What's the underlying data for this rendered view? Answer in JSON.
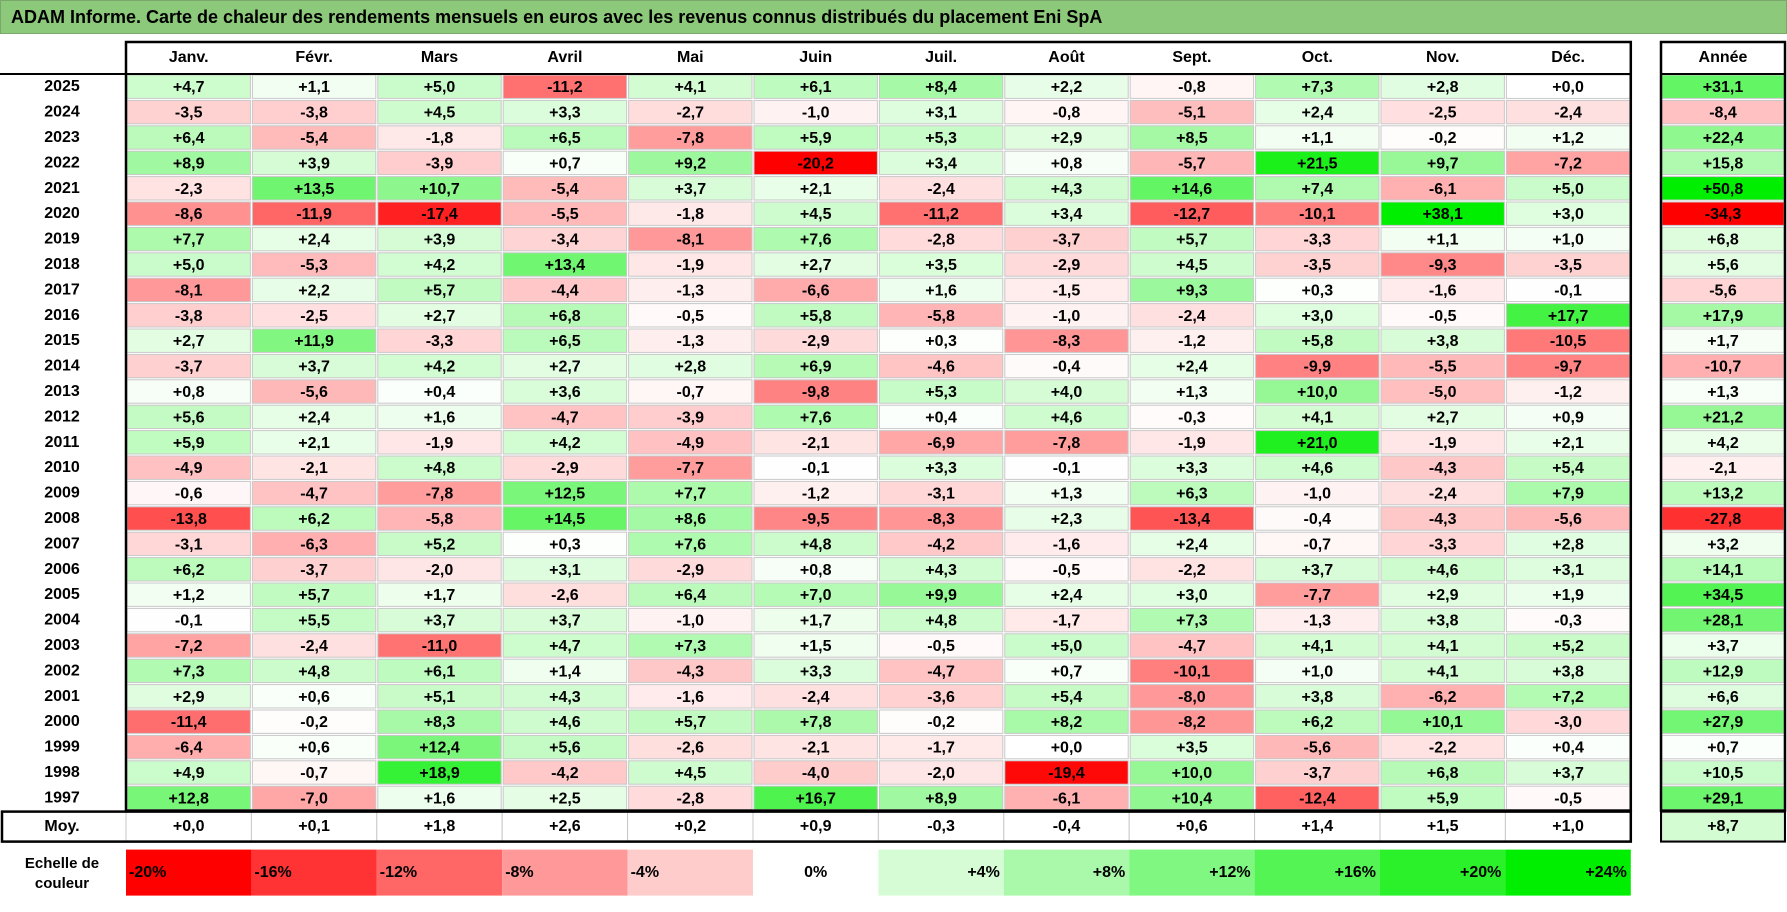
{
  "title": "ADAM Informe. Carte de chaleur des rendements mensuels en euros avec les revenus connus distribués du placement Eni SpA",
  "colors": {
    "title_bg": "#8cc97a",
    "negative_max": "#ff0000",
    "positive_max": "#00ee00",
    "neutral": "#ffffff",
    "grid": "#c8c8c8",
    "border": "#000000"
  },
  "chart_data": {
    "type": "heatmap",
    "title": "ADAM Informe. Carte de chaleur des rendements mensuels en euros avec les revenus connus distribués du placement Eni SpA",
    "columns": [
      "Janv.",
      "Févr.",
      "Mars",
      "Avril",
      "Mai",
      "Juin",
      "Juil.",
      "Août",
      "Sept.",
      "Oct.",
      "Nov.",
      "Déc."
    ],
    "year_column_label": "Année",
    "rows": [
      {
        "year": "2025",
        "values": [
          4.7,
          1.1,
          5.0,
          -11.2,
          4.1,
          6.1,
          8.4,
          2.2,
          -0.8,
          7.3,
          2.8,
          0.0
        ],
        "annual": 31.1
      },
      {
        "year": "2024",
        "values": [
          -3.5,
          -3.8,
          4.5,
          3.3,
          -2.7,
          -1.0,
          3.1,
          -0.8,
          -5.1,
          2.4,
          -2.5,
          -2.4
        ],
        "annual": -8.4
      },
      {
        "year": "2023",
        "values": [
          6.4,
          -5.4,
          -1.8,
          6.5,
          -7.8,
          5.9,
          5.3,
          2.9,
          8.5,
          1.1,
          -0.2,
          1.2
        ],
        "annual": 22.4
      },
      {
        "year": "2022",
        "values": [
          8.9,
          3.9,
          -3.9,
          0.7,
          9.2,
          -20.2,
          3.4,
          0.8,
          -5.7,
          21.5,
          9.7,
          -7.2
        ],
        "annual": 15.8
      },
      {
        "year": "2021",
        "values": [
          -2.3,
          13.5,
          10.7,
          -5.4,
          3.7,
          2.1,
          -2.4,
          4.3,
          14.6,
          7.4,
          -6.1,
          5.0
        ],
        "annual": 50.8
      },
      {
        "year": "2020",
        "values": [
          -8.6,
          -11.9,
          -17.4,
          -5.5,
          -1.8,
          4.5,
          -11.2,
          3.4,
          -12.7,
          -10.1,
          38.1,
          3.0
        ],
        "annual": -34.3
      },
      {
        "year": "2019",
        "values": [
          7.7,
          2.4,
          3.9,
          -3.4,
          -8.1,
          7.6,
          -2.8,
          -3.7,
          5.7,
          -3.3,
          1.1,
          1.0
        ],
        "annual": 6.8
      },
      {
        "year": "2018",
        "values": [
          5.0,
          -5.3,
          4.2,
          13.4,
          -1.9,
          2.7,
          3.5,
          -2.9,
          4.5,
          -3.5,
          -9.3,
          -3.5
        ],
        "annual": 5.6
      },
      {
        "year": "2017",
        "values": [
          -8.1,
          2.2,
          5.7,
          -4.4,
          -1.3,
          -6.6,
          1.6,
          -1.5,
          9.3,
          0.3,
          -1.6,
          -0.1
        ],
        "annual": -5.6
      },
      {
        "year": "2016",
        "values": [
          -3.8,
          -2.5,
          2.7,
          6.8,
          -0.5,
          5.8,
          -5.8,
          -1.0,
          -2.4,
          3.0,
          -0.5,
          17.7
        ],
        "annual": 17.9
      },
      {
        "year": "2015",
        "values": [
          2.7,
          11.9,
          -3.3,
          6.5,
          -1.3,
          -2.9,
          0.3,
          -8.3,
          -1.2,
          5.8,
          3.8,
          -10.5
        ],
        "annual": 1.7
      },
      {
        "year": "2014",
        "values": [
          -3.7,
          3.7,
          4.2,
          2.7,
          2.8,
          6.9,
          -4.6,
          -0.4,
          2.4,
          -9.9,
          -5.5,
          -9.7
        ],
        "annual": -10.7
      },
      {
        "year": "2013",
        "values": [
          0.8,
          -5.6,
          0.4,
          3.6,
          -0.7,
          -9.8,
          5.3,
          4.0,
          1.3,
          10.0,
          -5.0,
          -1.2
        ],
        "annual": 1.3
      },
      {
        "year": "2012",
        "values": [
          5.6,
          2.4,
          1.6,
          -4.7,
          -3.9,
          7.6,
          0.4,
          4.6,
          -0.3,
          4.1,
          2.7,
          0.9
        ],
        "annual": 21.2
      },
      {
        "year": "2011",
        "values": [
          5.9,
          2.1,
          -1.9,
          4.2,
          -4.9,
          -2.1,
          -6.9,
          -7.8,
          -1.9,
          21.0,
          -1.9,
          2.1
        ],
        "annual": 4.2
      },
      {
        "year": "2010",
        "values": [
          -4.9,
          -2.1,
          4.8,
          -2.9,
          -7.7,
          -0.1,
          3.3,
          -0.1,
          3.3,
          4.6,
          -4.3,
          5.4
        ],
        "annual": -2.1
      },
      {
        "year": "2009",
        "values": [
          -0.6,
          -4.7,
          -7.8,
          12.5,
          7.7,
          -1.2,
          -3.1,
          1.3,
          6.3,
          -1.0,
          -2.4,
          7.9
        ],
        "annual": 13.2
      },
      {
        "year": "2008",
        "values": [
          -13.8,
          6.2,
          -5.8,
          14.5,
          8.6,
          -9.5,
          -8.3,
          2.3,
          -13.4,
          -0.4,
          -4.3,
          -5.6
        ],
        "annual": -27.8
      },
      {
        "year": "2007",
        "values": [
          -3.1,
          -6.3,
          5.2,
          0.3,
          7.6,
          4.8,
          -4.2,
          -1.6,
          2.4,
          -0.7,
          -3.3,
          2.8
        ],
        "annual": 3.2
      },
      {
        "year": "2006",
        "values": [
          6.2,
          -3.7,
          -2.0,
          3.1,
          -2.9,
          0.8,
          4.3,
          -0.5,
          -2.2,
          3.7,
          4.6,
          3.1
        ],
        "annual": 14.1
      },
      {
        "year": "2005",
        "values": [
          1.2,
          5.7,
          1.7,
          -2.6,
          6.4,
          7.0,
          9.9,
          2.4,
          3.0,
          -7.7,
          2.9,
          1.9
        ],
        "annual": 34.5
      },
      {
        "year": "2004",
        "values": [
          -0.1,
          5.5,
          3.7,
          3.7,
          -1.0,
          1.7,
          4.8,
          -1.7,
          7.3,
          -1.3,
          3.8,
          -0.3
        ],
        "annual": 28.1
      },
      {
        "year": "2003",
        "values": [
          -7.2,
          -2.4,
          -11.0,
          4.7,
          7.3,
          1.5,
          -0.5,
          5.0,
          -4.7,
          4.1,
          4.1,
          5.2
        ],
        "annual": 3.7
      },
      {
        "year": "2002",
        "values": [
          7.3,
          4.8,
          6.1,
          1.4,
          -4.3,
          3.3,
          -4.7,
          0.7,
          -10.1,
          1.0,
          4.1,
          3.8
        ],
        "annual": 12.9
      },
      {
        "year": "2001",
        "values": [
          2.9,
          0.6,
          5.1,
          4.3,
          -1.6,
          -2.4,
          -3.6,
          5.4,
          -8.0,
          3.8,
          -6.2,
          7.2
        ],
        "annual": 6.6
      },
      {
        "year": "2000",
        "values": [
          -11.4,
          -0.2,
          8.3,
          4.6,
          5.7,
          7.8,
          -0.2,
          8.2,
          -8.2,
          6.2,
          10.1,
          -3.0
        ],
        "annual": 27.9
      },
      {
        "year": "1999",
        "values": [
          -6.4,
          0.6,
          12.4,
          5.6,
          -2.6,
          -2.1,
          -1.7,
          0.0,
          3.5,
          -5.6,
          -2.2,
          0.4
        ],
        "annual": 0.7
      },
      {
        "year": "1998",
        "values": [
          4.9,
          -0.7,
          18.9,
          -4.2,
          4.5,
          -4.0,
          -2.0,
          -19.4,
          10.0,
          -3.7,
          6.8,
          3.7
        ],
        "annual": 10.5
      },
      {
        "year": "1997",
        "values": [
          12.8,
          -7.0,
          1.6,
          2.5,
          -2.8,
          16.7,
          8.9,
          -6.1,
          10.4,
          -12.4,
          5.9,
          -0.5
        ],
        "annual": 29.1
      }
    ],
    "average": {
      "label": "Moy.",
      "values": [
        0.0,
        0.1,
        1.8,
        2.6,
        0.2,
        0.9,
        -0.3,
        -0.4,
        0.6,
        1.4,
        1.5,
        1.0
      ],
      "annual": 8.7
    },
    "scale": {
      "label_line1": "Echelle de",
      "label_line2": "couleur",
      "stops": [
        -20,
        -16,
        -12,
        -8,
        -4,
        0,
        4,
        8,
        12,
        16,
        20,
        24
      ],
      "labels": [
        "-20%",
        "-16%",
        "-12%",
        "-8%",
        "-4%",
        "0%",
        "+4%",
        "+8%",
        "+12%",
        "+16%",
        "+20%",
        "+24%"
      ]
    }
  }
}
